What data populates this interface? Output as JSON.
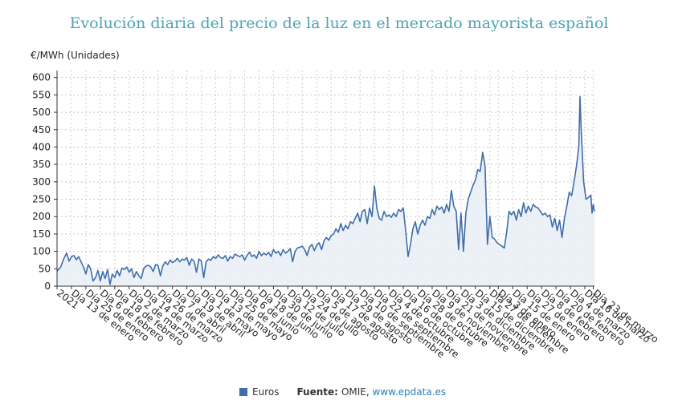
{
  "chart_data": {
    "type": "area",
    "title": "Evolución diaria del precio de la luz en el mercado mayorista español",
    "ylabel": "€/MWh (Unidades)",
    "ylim": [
      0,
      620
    ],
    "yticks": [
      0,
      50,
      100,
      150,
      200,
      250,
      300,
      350,
      400,
      450,
      500,
      550,
      600
    ],
    "grid": true,
    "x_tick_labels": [
      "2021",
      "Día 13 de enero",
      "Día 25 de enero",
      "Día 6 de febrero",
      "Día 18 de febrero",
      "Día 2 de marzo",
      "Día 14 de marzo",
      "Día 26 de marzo",
      "Día 7 de abril",
      "Día 19 de abril",
      "Día 1 de mayo",
      "Día 13 de mayo",
      "Día 25 de mayo",
      "Día 6 de junio",
      "Día 18 de junio",
      "Día 30 de junio",
      "Día 12 de julio",
      "Día 24 de julio",
      "Día 5 de agosto",
      "Día 17 de agosto",
      "Día 29 de agosto",
      "Día 10 de septiembre",
      "Día 22 de septiembre",
      "Día 4 de octubre",
      "Día 16 de octubre",
      "Día 28 de octubre",
      "Día 9 de noviembre",
      "Día 21 de noviembre",
      "Día 3 de diciembre",
      "Día 15 de diciembre",
      "Día 27 de diciembre",
      "Día 3 de enero",
      "Día 15 de enero",
      "Día 27 de enero",
      "Día 8 de febrero",
      "Día 20 de febrero",
      "Día 4 de marzo",
      "Día 16 de marzo",
      "Día 23 de marzo"
    ],
    "x_tick_days": [
      0,
      12,
      24,
      36,
      48,
      60,
      72,
      84,
      96,
      108,
      120,
      132,
      144,
      156,
      168,
      180,
      192,
      204,
      216,
      228,
      240,
      252,
      264,
      276,
      288,
      300,
      312,
      324,
      336,
      348,
      360,
      367,
      379,
      391,
      403,
      415,
      427,
      439,
      446
    ],
    "x_range_days": [
      0,
      447
    ],
    "series": [
      {
        "name": "Euros",
        "color": "#3f6ea8",
        "points": [
          [
            0,
            43
          ],
          [
            3,
            55
          ],
          [
            6,
            82
          ],
          [
            8,
            95
          ],
          [
            10,
            72
          ],
          [
            12,
            85
          ],
          [
            14,
            88
          ],
          [
            16,
            76
          ],
          [
            18,
            85
          ],
          [
            20,
            70
          ],
          [
            22,
            55
          ],
          [
            24,
            35
          ],
          [
            26,
            62
          ],
          [
            28,
            50
          ],
          [
            30,
            15
          ],
          [
            32,
            25
          ],
          [
            34,
            45
          ],
          [
            36,
            15
          ],
          [
            38,
            42
          ],
          [
            40,
            22
          ],
          [
            42,
            48
          ],
          [
            44,
            5
          ],
          [
            46,
            35
          ],
          [
            48,
            25
          ],
          [
            50,
            45
          ],
          [
            52,
            30
          ],
          [
            54,
            52
          ],
          [
            56,
            48
          ],
          [
            58,
            55
          ],
          [
            60,
            40
          ],
          [
            62,
            50
          ],
          [
            64,
            25
          ],
          [
            66,
            42
          ],
          [
            68,
            30
          ],
          [
            70,
            22
          ],
          [
            72,
            50
          ],
          [
            74,
            58
          ],
          [
            76,
            60
          ],
          [
            78,
            55
          ],
          [
            80,
            42
          ],
          [
            82,
            62
          ],
          [
            84,
            60
          ],
          [
            86,
            30
          ],
          [
            88,
            58
          ],
          [
            90,
            70
          ],
          [
            92,
            62
          ],
          [
            94,
            75
          ],
          [
            96,
            68
          ],
          [
            98,
            72
          ],
          [
            100,
            80
          ],
          [
            102,
            70
          ],
          [
            104,
            78
          ],
          [
            106,
            75
          ],
          [
            108,
            82
          ],
          [
            110,
            60
          ],
          [
            112,
            78
          ],
          [
            114,
            72
          ],
          [
            116,
            40
          ],
          [
            118,
            78
          ],
          [
            120,
            72
          ],
          [
            122,
            25
          ],
          [
            124,
            70
          ],
          [
            126,
            78
          ],
          [
            128,
            75
          ],
          [
            130,
            85
          ],
          [
            132,
            80
          ],
          [
            134,
            90
          ],
          [
            136,
            82
          ],
          [
            138,
            80
          ],
          [
            140,
            88
          ],
          [
            142,
            72
          ],
          [
            144,
            85
          ],
          [
            146,
            80
          ],
          [
            148,
            92
          ],
          [
            150,
            88
          ],
          [
            152,
            85
          ],
          [
            154,
            90
          ],
          [
            156,
            75
          ],
          [
            158,
            88
          ],
          [
            160,
            98
          ],
          [
            162,
            85
          ],
          [
            164,
            90
          ],
          [
            166,
            80
          ],
          [
            168,
            100
          ],
          [
            170,
            88
          ],
          [
            172,
            95
          ],
          [
            174,
            90
          ],
          [
            176,
            97
          ],
          [
            178,
            85
          ],
          [
            180,
            105
          ],
          [
            182,
            95
          ],
          [
            184,
            100
          ],
          [
            186,
            88
          ],
          [
            188,
            105
          ],
          [
            190,
            95
          ],
          [
            192,
            100
          ],
          [
            194,
            108
          ],
          [
            196,
            70
          ],
          [
            198,
            100
          ],
          [
            200,
            110
          ],
          [
            202,
            112
          ],
          [
            204,
            115
          ],
          [
            206,
            105
          ],
          [
            208,
            88
          ],
          [
            210,
            112
          ],
          [
            212,
            120
          ],
          [
            214,
            102
          ],
          [
            216,
            118
          ],
          [
            218,
            125
          ],
          [
            220,
            105
          ],
          [
            222,
            130
          ],
          [
            224,
            140
          ],
          [
            226,
            132
          ],
          [
            228,
            145
          ],
          [
            230,
            150
          ],
          [
            232,
            165
          ],
          [
            234,
            155
          ],
          [
            236,
            180
          ],
          [
            238,
            160
          ],
          [
            240,
            175
          ],
          [
            242,
            165
          ],
          [
            244,
            185
          ],
          [
            246,
            180
          ],
          [
            248,
            195
          ],
          [
            250,
            210
          ],
          [
            252,
            185
          ],
          [
            254,
            215
          ],
          [
            256,
            220
          ],
          [
            258,
            180
          ],
          [
            260,
            225
          ],
          [
            262,
            200
          ],
          [
            264,
            288
          ],
          [
            266,
            225
          ],
          [
            268,
            195
          ],
          [
            270,
            190
          ],
          [
            272,
            215
          ],
          [
            274,
            200
          ],
          [
            276,
            205
          ],
          [
            278,
            198
          ],
          [
            280,
            210
          ],
          [
            282,
            200
          ],
          [
            284,
            220
          ],
          [
            286,
            215
          ],
          [
            288,
            225
          ],
          [
            290,
            160
          ],
          [
            292,
            85
          ],
          [
            294,
            120
          ],
          [
            296,
            165
          ],
          [
            298,
            185
          ],
          [
            300,
            150
          ],
          [
            302,
            175
          ],
          [
            304,
            190
          ],
          [
            306,
            175
          ],
          [
            308,
            200
          ],
          [
            310,
            195
          ],
          [
            312,
            220
          ],
          [
            314,
            205
          ],
          [
            316,
            230
          ],
          [
            318,
            220
          ],
          [
            320,
            228
          ],
          [
            322,
            210
          ],
          [
            324,
            235
          ],
          [
            326,
            215
          ],
          [
            328,
            275
          ],
          [
            330,
            230
          ],
          [
            332,
            215
          ],
          [
            334,
            105
          ],
          [
            336,
            210
          ],
          [
            338,
            100
          ],
          [
            340,
            210
          ],
          [
            342,
            250
          ],
          [
            344,
            270
          ],
          [
            346,
            290
          ],
          [
            348,
            305
          ],
          [
            350,
            335
          ],
          [
            352,
            330
          ],
          [
            354,
            385
          ],
          [
            356,
            345
          ],
          [
            358,
            120
          ],
          [
            360,
            200
          ],
          [
            362,
            140
          ],
          [
            364,
            135
          ],
          [
            366,
            125
          ],
          [
            368,
            120
          ],
          [
            370,
            115
          ],
          [
            372,
            110
          ],
          [
            374,
            155
          ],
          [
            376,
            215
          ],
          [
            378,
            205
          ],
          [
            380,
            215
          ],
          [
            382,
            190
          ],
          [
            384,
            220
          ],
          [
            386,
            200
          ],
          [
            388,
            240
          ],
          [
            390,
            210
          ],
          [
            392,
            230
          ],
          [
            394,
            215
          ],
          [
            396,
            235
          ],
          [
            398,
            228
          ],
          [
            400,
            225
          ],
          [
            402,
            215
          ],
          [
            404,
            205
          ],
          [
            406,
            210
          ],
          [
            408,
            200
          ],
          [
            410,
            205
          ],
          [
            412,
            170
          ],
          [
            414,
            195
          ],
          [
            416,
            160
          ],
          [
            418,
            190
          ],
          [
            420,
            140
          ],
          [
            422,
            195
          ],
          [
            424,
            230
          ],
          [
            426,
            270
          ],
          [
            428,
            260
          ],
          [
            430,
            300
          ],
          [
            432,
            345
          ],
          [
            434,
            400
          ],
          [
            435,
            545
          ],
          [
            436,
            450
          ],
          [
            438,
            300
          ],
          [
            440,
            250
          ],
          [
            442,
            255
          ],
          [
            444,
            262
          ],
          [
            445,
            210
          ],
          [
            446,
            235
          ],
          [
            447,
            215
          ]
        ]
      }
    ],
    "legend_position": "bottom-center",
    "source_label": "Fuente:",
    "source_text": "OMIE,",
    "source_link": "www.epdata.es"
  }
}
